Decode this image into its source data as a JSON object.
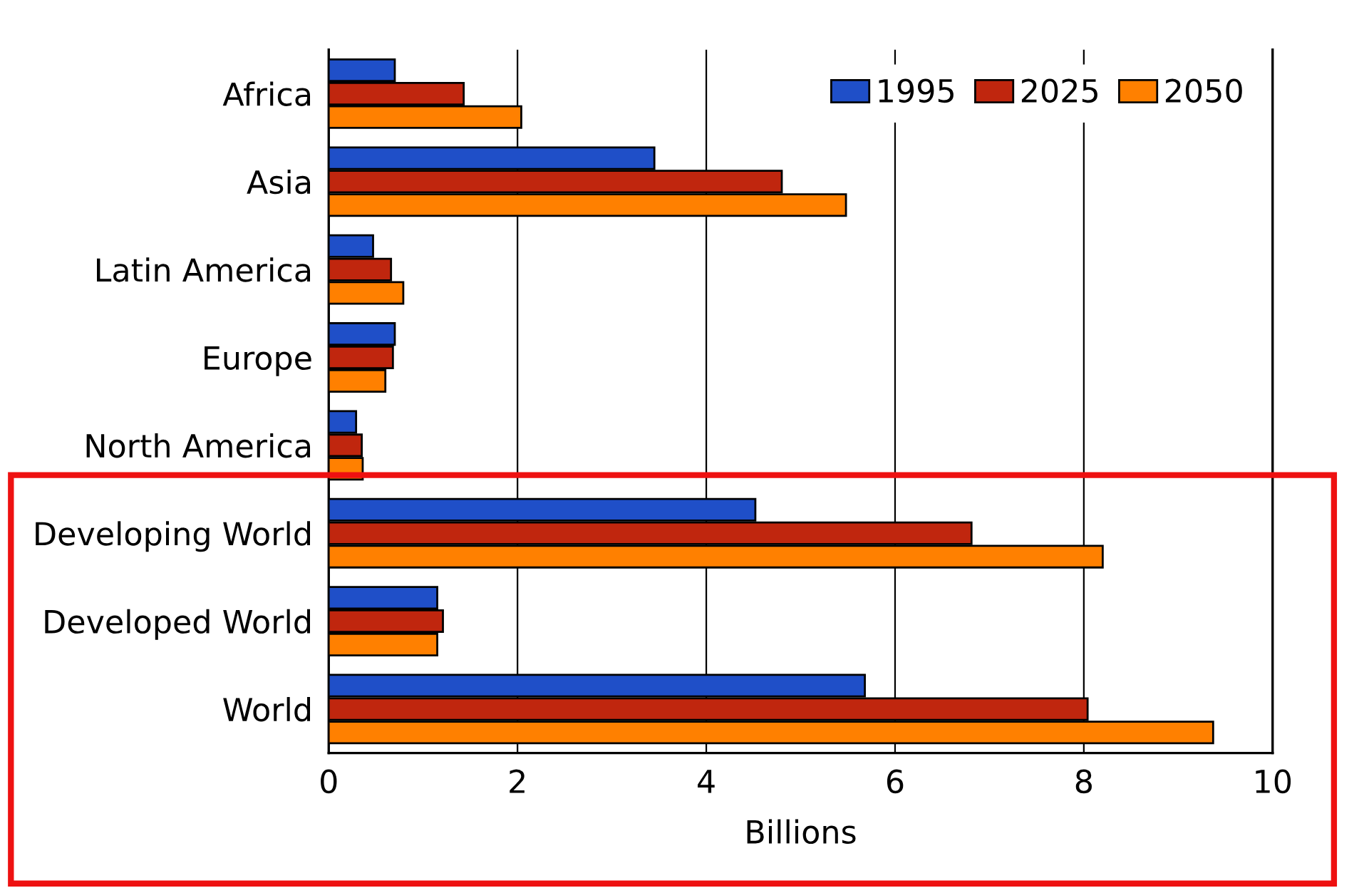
{
  "chart_data": {
    "type": "bar",
    "orientation": "horizontal",
    "xlabel": "Billions",
    "categories": [
      "Africa",
      "Asia",
      "Latin America",
      "Europe",
      "North America",
      "Developing World",
      "Developed World",
      "World"
    ],
    "series": [
      {
        "name": "1995",
        "color": "#1f4fc8",
        "values": [
          0.7,
          3.45,
          0.47,
          0.7,
          0.29,
          4.52,
          1.15,
          5.68
        ]
      },
      {
        "name": "2025",
        "color": "#c0260e",
        "values": [
          1.43,
          4.8,
          0.66,
          0.68,
          0.35,
          6.81,
          1.21,
          8.04
        ]
      },
      {
        "name": "2050",
        "color": "#ff8000",
        "values": [
          2.04,
          5.48,
          0.79,
          0.6,
          0.36,
          8.2,
          1.15,
          9.37
        ]
      }
    ],
    "xlim": [
      0,
      10
    ],
    "xticks": [
      0,
      2,
      4,
      6,
      8,
      10
    ],
    "grid": "x",
    "legend": "top right"
  }
}
